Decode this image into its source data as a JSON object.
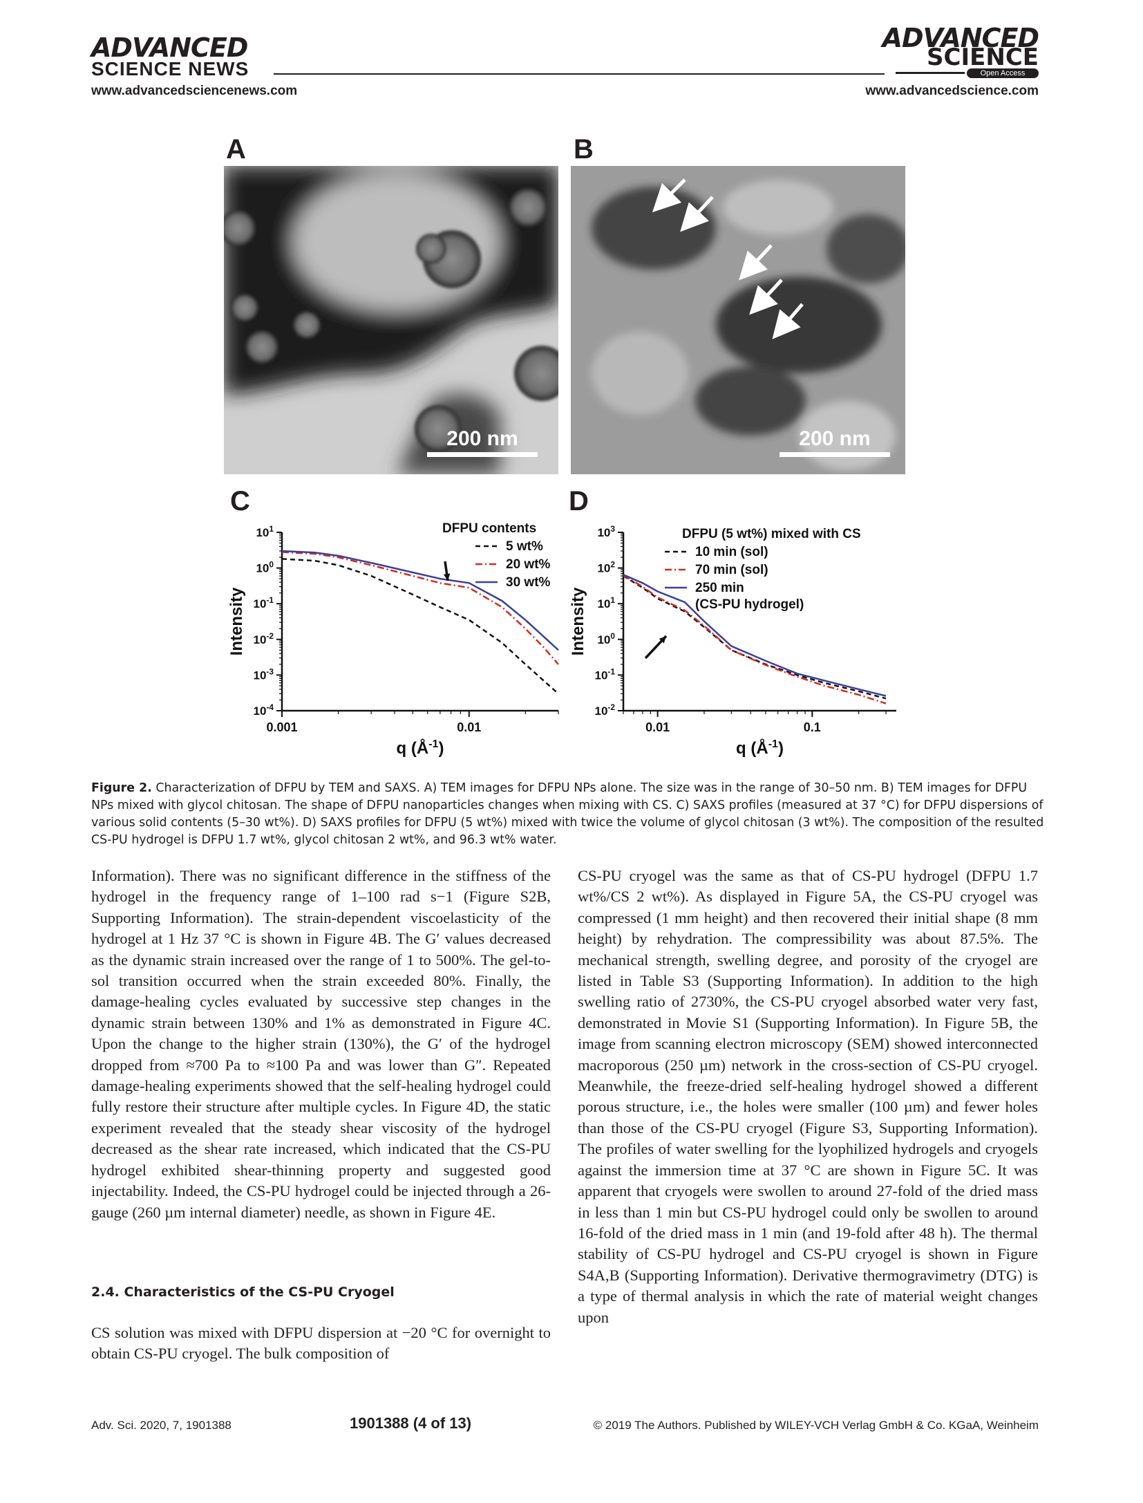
{
  "header": {
    "left_logo_line1": "ADVANCED",
    "left_logo_line2": "SCIENCE NEWS",
    "left_url": "www.advancedsciencenews.com",
    "right_logo_line1": "ADVANCED",
    "right_logo_line2": "SCIENCE",
    "right_badge": "Open Access",
    "right_url": "www.advancedscience.com"
  },
  "figure": {
    "panels": {
      "A": "A",
      "B": "B",
      "C": "C",
      "D": "D"
    },
    "scalebar_A": "200 nm",
    "scalebar_B": "200 nm",
    "caption_label": "Figure 2.",
    "caption_text": "Characterization of DFPU by TEM and SAXS. A) TEM images for DFPU NPs alone. The size was in the range of 30–50 nm. B) TEM images for DFPU NPs mixed with glycol chitosan. The shape of DFPU nanoparticles changes when mixing with CS. C) SAXS profiles (measured at 37 °C) for DFPU dispersions of various solid contents (5–30 wt%). D) SAXS profiles for DFPU (5 wt%) mixed with twice the volume of glycol chitosan (3 wt%). The composition of the resulted CS-PU hydrogel is DFPU 1.7 wt%, glycol chitosan 2 wt%, and 96.3 wt% water."
  },
  "chart_data": [
    {
      "type": "line",
      "panel": "C",
      "xlabel": "q (Å-1)",
      "ylabel": "Intensity",
      "xscale": "log",
      "yscale": "log",
      "xlim": [
        0.001,
        0.03
      ],
      "ylim": [
        0.0001,
        10
      ],
      "x_ticks": [
        "0.001",
        "0.01"
      ],
      "y_ticks": [
        "10-4",
        "10-3",
        "10-2",
        "10-1",
        "100",
        "101"
      ],
      "legend_title": "DFPU contents",
      "legend_position": "top-right",
      "series": [
        {
          "name": "5 wt%",
          "color": "#111111",
          "style": "dashed",
          "x": [
            0.001,
            0.0015,
            0.002,
            0.003,
            0.005,
            0.007,
            0.01,
            0.015,
            0.02,
            0.025,
            0.03
          ],
          "y": [
            1.8,
            1.6,
            1.2,
            0.6,
            0.18,
            0.08,
            0.035,
            0.008,
            0.002,
            0.0007,
            0.0003
          ]
        },
        {
          "name": "20 wt%",
          "color": "#d42a1f",
          "style": "dashdot",
          "x": [
            0.001,
            0.0015,
            0.002,
            0.003,
            0.005,
            0.007,
            0.01,
            0.015,
            0.02,
            0.025,
            0.03
          ],
          "y": [
            2.8,
            2.5,
            2.0,
            1.2,
            0.6,
            0.38,
            0.28,
            0.08,
            0.02,
            0.006,
            0.002
          ]
        },
        {
          "name": "30 wt%",
          "color": "#3a3f9e",
          "style": "solid",
          "x": [
            0.001,
            0.0015,
            0.002,
            0.003,
            0.005,
            0.007,
            0.01,
            0.015,
            0.02,
            0.025,
            0.03
          ],
          "y": [
            3.0,
            2.7,
            2.2,
            1.4,
            0.75,
            0.5,
            0.38,
            0.12,
            0.035,
            0.012,
            0.005
          ]
        }
      ]
    },
    {
      "type": "line",
      "panel": "D",
      "xlabel": "q (Å-1)",
      "ylabel": "Intensity",
      "xscale": "log",
      "yscale": "log",
      "xlim": [
        0.006,
        0.35
      ],
      "ylim": [
        0.01,
        1000
      ],
      "x_ticks": [
        "0.01",
        "0.1"
      ],
      "y_ticks": [
        "10-2",
        "10-1",
        "100",
        "101",
        "102",
        "103"
      ],
      "legend_title": "DFPU (5 wt%) mixed with CS",
      "legend_position": "top-right",
      "series": [
        {
          "name": "10 min (sol)",
          "color": "#111111",
          "style": "dashed",
          "x": [
            0.006,
            0.008,
            0.01,
            0.015,
            0.02,
            0.03,
            0.05,
            0.08,
            0.12,
            0.2,
            0.3
          ],
          "y": [
            60,
            28,
            14,
            6,
            2.2,
            0.5,
            0.2,
            0.1,
            0.06,
            0.035,
            0.022
          ]
        },
        {
          "name": "70 min (sol)",
          "color": "#d42a1f",
          "style": "dashdot",
          "x": [
            0.006,
            0.008,
            0.01,
            0.015,
            0.02,
            0.03,
            0.05,
            0.08,
            0.12,
            0.2,
            0.3
          ],
          "y": [
            62,
            30,
            15,
            6.5,
            2.4,
            0.5,
            0.19,
            0.09,
            0.05,
            0.028,
            0.016
          ]
        },
        {
          "name": "250 min (CS-PU hydrogel)",
          "color": "#3a3f9e",
          "style": "solid",
          "x": [
            0.006,
            0.008,
            0.01,
            0.015,
            0.02,
            0.03,
            0.05,
            0.08,
            0.12,
            0.2,
            0.3
          ],
          "y": [
            65,
            38,
            22,
            11,
            3.2,
            0.65,
            0.25,
            0.11,
            0.07,
            0.04,
            0.026
          ]
        }
      ]
    }
  ],
  "body": {
    "left_col": "Information). There was no significant difference in the stiffness of the hydrogel in the frequency range of 1–100 rad s−1 (Figure S2B, Supporting Information). The strain-dependent viscoelasticity of the hydrogel at 1 Hz 37 °C is shown in Figure 4B. The G′ values decreased as the dynamic strain increased over the range of 1 to 500%. The gel-to-sol transition occurred when the strain exceeded 80%. Finally, the damage-healing cycles evaluated by successive step changes in the dynamic strain between 130% and 1% as demonstrated in Figure 4C. Upon the change to the higher strain (130%), the G′ of the hydrogel dropped from ≈700 Pa to ≈100 Pa and was lower than G″. Repeated damage-healing experiments showed that the self-healing hydrogel could fully restore their structure after multiple cycles. In Figure 4D, the static experiment revealed that the steady shear viscosity of the hydrogel decreased as the shear rate increased, which indicated that the CS-PU hydrogel exhibited shear-thinning property and suggested good injectability. Indeed, the CS-PU hydrogel could be injected through a 26-gauge (260 µm internal diameter) needle, as shown in Figure 4E.",
    "section_heading": "2.4. Characteristics of the CS-PU Cryogel",
    "left_col_2": "CS solution was mixed with DFPU dispersion at −20 °C for overnight to obtain CS-PU cryogel. The bulk composition of",
    "right_col": "CS-PU cryogel was the same as that of CS-PU hydrogel (DFPU 1.7 wt%/CS 2 wt%). As displayed in Figure 5A, the CS-PU cryogel was compressed (1 mm height) and then recovered their initial shape (8 mm height) by rehydration. The compressibility was about 87.5%. The mechanical strength, swelling degree, and porosity of the cryogel are listed in Table S3 (Supporting Information). In addition to the high swelling ratio of 2730%, the CS-PU cryogel absorbed water very fast, demonstrated in Movie S1 (Supporting Information). In Figure 5B, the image from scanning electron microscopy (SEM) showed interconnected macroporous (250 µm) network in the cross-section of CS-PU cryogel. Meanwhile, the freeze-dried self-healing hydrogel showed a different porous structure, i.e., the holes were smaller (100 µm) and fewer holes than those of the CS-PU cryogel (Figure S3, Supporting Information). The profiles of water swelling for the lyophilized hydrogels and cryogels against the immersion time at 37 °C are shown in Figure 5C. It was apparent that cryogels were swollen to around 27-fold of the dried mass in less than 1 min but CS-PU hydrogel could only be swollen to around 16-fold of the dried mass in 1 min (and 19-fold after 48 h). The thermal stability of CS-PU hydrogel and CS-PU cryogel is shown in Figure S4A,B (Supporting Information). Derivative thermogravimetry (DTG) is a type of thermal analysis in which the rate of material weight changes upon"
  },
  "footer": {
    "journal": "Adv. Sci. 2020, 7, 1901388",
    "page": "1901388  (4 of 13)",
    "copyright": "© 2019 The Authors. Published by WILEY-VCH Verlag GmbH & Co. KGaA, Weinheim"
  }
}
